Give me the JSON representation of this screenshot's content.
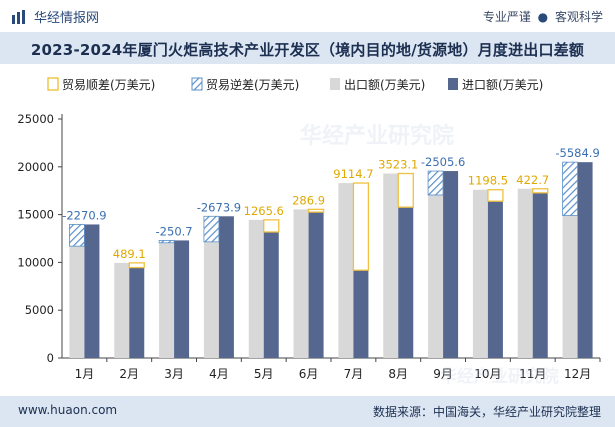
{
  "header": {
    "brand": "华经情报网",
    "slogan_left": "专业严谨",
    "slogan_sep": "●",
    "slogan_right": "客观科学"
  },
  "watermark": "华经产业研究院",
  "footer": {
    "url": "www.huaon.com",
    "source": "数据来源：中国海关，华经产业研究院整理"
  },
  "colors": {
    "surplus": "#f0c040",
    "deficit": "#5a90c8",
    "export": "#d8d8d8",
    "import": "#56678f"
  },
  "chart_data": {
    "type": "bar",
    "title": "2023-2024年厦门火炬高技术产业开发区（境内目的地/货源地）月度进出口差额",
    "categories": [
      "1月",
      "2月",
      "3月",
      "4月",
      "5月",
      "6月",
      "7月",
      "8月",
      "9月",
      "10月",
      "11月",
      "12月"
    ],
    "legend": [
      "贸易顺差(万美元)",
      "贸易逆差(万美元)",
      "出口额(万美元)",
      "进口额(万美元)"
    ],
    "legend_position": "top-left",
    "series": [
      {
        "name": "出口额(万美元)",
        "values": [
          11700,
          9950,
          12050,
          12150,
          14450,
          15550,
          18300,
          19300,
          17050,
          17600,
          17700,
          14900
        ]
      },
      {
        "name": "进口额(万美元)",
        "values": [
          13970,
          9461,
          12300,
          14824,
          13184,
          15263,
          9185,
          15777,
          19556,
          16401,
          17277,
          20485
        ]
      }
    ],
    "balance_labels": [
      "-2270.9",
      "489.1",
      "-250.7",
      "-2673.9",
      "1265.6",
      "286.9",
      "9114.7",
      "3523.1",
      "-2505.6",
      "1198.5",
      "422.7",
      "-5584.9"
    ],
    "ylim": [
      0,
      25000
    ],
    "yticks": [
      0,
      5000,
      10000,
      15000,
      20000,
      25000
    ],
    "ytick_labels": [
      "0",
      "5000",
      "10000",
      "15000",
      "20000",
      "25000"
    ],
    "grid": false
  }
}
